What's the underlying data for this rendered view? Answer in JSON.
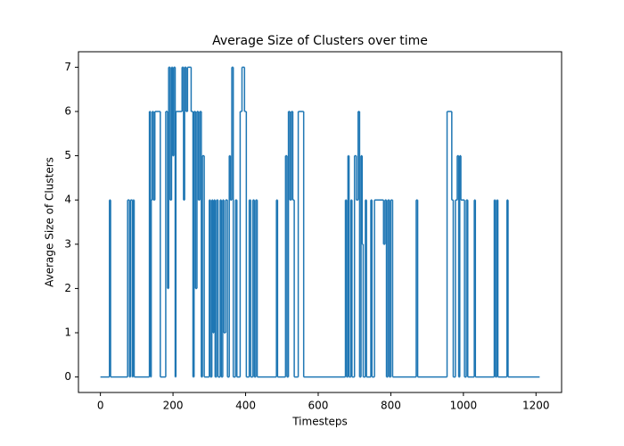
{
  "chart_data": {
    "type": "line",
    "title": "Average Size of Clusters over time",
    "x_label": "Timesteps",
    "y_label": "Average Size of Clusters",
    "drawstyle": "steps-post",
    "grid": false,
    "xlim": [
      -60.5,
      1270.5
    ],
    "ylim": [
      -0.35,
      7.35
    ],
    "xticks": [
      0,
      200,
      400,
      600,
      800,
      1000,
      1200
    ],
    "yticks": [
      0,
      1,
      2,
      3,
      4,
      5,
      6,
      7
    ],
    "series": [
      {
        "color": "#1f77b4",
        "x": [
          0,
          25,
          28,
          75,
          80,
          83,
          88,
          90,
          93,
          135,
          138,
          140,
          143,
          146,
          150,
          165,
          180,
          185,
          188,
          192,
          196,
          199,
          202,
          206,
          208,
          225,
          229,
          232,
          236,
          240,
          250,
          255,
          258,
          262,
          266,
          270,
          274,
          278,
          281,
          286,
          300,
          303,
          307,
          310,
          313,
          316,
          320,
          324,
          330,
          333,
          337,
          340,
          345,
          350,
          355,
          358,
          362,
          366,
          372,
          376,
          385,
          390,
          397,
          402,
          410,
          414,
          420,
          424,
          428,
          432,
          485,
          488,
          510,
          514,
          518,
          522,
          526,
          530,
          534,
          545,
          560,
          675,
          678,
          682,
          685,
          690,
          693,
          700,
          705,
          710,
          714,
          718,
          721,
          724,
          730,
          733,
          745,
          748,
          755,
          780,
          784,
          788,
          792,
          796,
          800,
          805,
          870,
          874,
          955,
          968,
          972,
          978,
          983,
          987,
          990,
          993,
          1003,
          1008,
          1012,
          1030,
          1033,
          1085,
          1088,
          1092,
          1095,
          1120,
          1123,
          1210
        ],
        "values": [
          0,
          4,
          0,
          4,
          0,
          4,
          0,
          4,
          0,
          6,
          0,
          4,
          6,
          4,
          6,
          0,
          6,
          2,
          7,
          4,
          7,
          5,
          7,
          0,
          6,
          7,
          4,
          7,
          6,
          7,
          6,
          0,
          6,
          2,
          6,
          4,
          6,
          0,
          5,
          0,
          4,
          0,
          4,
          1,
          4,
          0,
          4,
          0,
          4,
          0,
          4,
          1,
          4,
          0,
          5,
          4,
          7,
          0,
          4,
          0,
          6,
          7,
          6,
          0,
          4,
          0,
          4,
          0,
          4,
          0,
          4,
          0,
          5,
          0,
          6,
          4,
          6,
          4,
          0,
          6,
          0,
          4,
          0,
          5,
          0,
          4,
          0,
          5,
          4,
          6,
          0,
          5,
          3,
          0,
          4,
          0,
          4,
          0,
          4,
          3,
          4,
          0,
          4,
          0,
          4,
          0,
          4,
          0,
          6,
          4,
          0,
          4,
          5,
          0,
          5,
          4,
          0,
          4,
          0,
          4,
          0,
          4,
          0,
          4,
          0,
          4,
          0,
          0
        ]
      }
    ]
  }
}
